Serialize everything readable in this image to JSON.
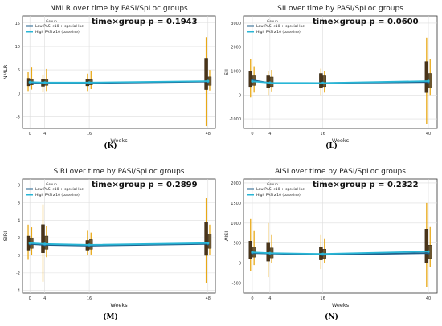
{
  "weeks_label": "Weeks",
  "panels": [
    {
      "letter": "(K)"
    },
    {
      "letter": "(L)"
    },
    {
      "letter": "(M)"
    },
    {
      "letter": "(N)"
    }
  ],
  "chart_data": [
    {
      "type": "line",
      "title": "NMLR over time by PASI/SpLoc groups",
      "annotation": "time×group p = 0.1943",
      "xlabel": "Weeks",
      "ylabel": "NMLR",
      "x": [
        0,
        4,
        16,
        48
      ],
      "xlim": [
        -2,
        50
      ],
      "ylim": [
        -7.5,
        16.5
      ],
      "yticks": [
        -5,
        0,
        5,
        10,
        15
      ],
      "grid": true,
      "legend": {
        "title": "Group",
        "placement": "top-left"
      },
      "series": [
        {
          "name": "Low PASI<10 + special loc",
          "color": "#1f5f8b",
          "values": [
            2.3,
            2.2,
            2.2,
            2.5
          ],
          "box": {
            "q1": [
              1.6,
              1.5,
              1.6,
              0.8
            ],
            "q3": [
              3.2,
              3.0,
              3.0,
              7.5
            ],
            "lo": [
              0.5,
              0.2,
              0.5,
              -7.0
            ],
            "hi": [
              4.5,
              4.0,
              4.2,
              12.0
            ]
          }
        },
        {
          "name": "High PASI≥10 (baseline)",
          "color": "#29b6d6",
          "values": [
            2.4,
            2.3,
            2.3,
            2.6
          ],
          "box": {
            "q1": [
              1.8,
              1.7,
              1.8,
              1.7
            ],
            "q3": [
              3.0,
              3.0,
              2.9,
              3.5
            ],
            "lo": [
              0.8,
              0.5,
              0.9,
              0.6
            ],
            "hi": [
              5.5,
              5.2,
              4.8,
              5.0
            ]
          }
        }
      ]
    },
    {
      "type": "line",
      "title": "SII over time by PASI/SpLoc groups",
      "annotation": "time×group p = 0.0600",
      "xlabel": "Weeks",
      "ylabel": "SII",
      "x": [
        0,
        4,
        16,
        40
      ],
      "xlim": [
        -2,
        42
      ],
      "ylim": [
        -1400,
        3300
      ],
      "yticks": [
        -1000,
        0,
        1000,
        2000,
        3000
      ],
      "grid": true,
      "legend": {
        "title": "Group",
        "placement": "top-left"
      },
      "series": [
        {
          "name": "Low PASI<10 + special loc",
          "color": "#1f5f8b",
          "values": [
            620,
            500,
            500,
            540
          ],
          "box": {
            "q1": [
              350,
              300,
              300,
              100
            ],
            "q3": [
              1000,
              800,
              900,
              1400
            ],
            "lo": [
              -100,
              0,
              0,
              -1200
            ],
            "hi": [
              1500,
              1000,
              1100,
              2400
            ]
          }
        },
        {
          "name": "High PASI≥10 (baseline)",
          "color": "#29b6d6",
          "values": [
            570,
            510,
            500,
            580
          ],
          "box": {
            "q1": [
              400,
              350,
              350,
              300
            ],
            "q3": [
              800,
              750,
              800,
              900
            ],
            "lo": [
              100,
              150,
              100,
              0
            ],
            "hi": [
              1200,
              1050,
              1000,
              1500
            ]
          }
        }
      ]
    },
    {
      "type": "line",
      "title": "SIRI over time by PASI/SpLoc groups",
      "annotation": "time×group p = 0.2899",
      "xlabel": "Weeks",
      "ylabel": "SIRI",
      "x": [
        0,
        4,
        16,
        48
      ],
      "xlim": [
        -2,
        50
      ],
      "ylim": [
        -4.3,
        8.7
      ],
      "yticks": [
        -4,
        -2,
        0,
        2,
        4,
        6,
        8
      ],
      "grid": true,
      "legend": {
        "title": "Group",
        "placement": "top-left"
      },
      "series": [
        {
          "name": "Low PASI<10 + special loc",
          "color": "#1f5f8b",
          "values": [
            1.3,
            1.2,
            1.1,
            1.3
          ],
          "box": {
            "q1": [
              0.6,
              0.3,
              0.6,
              0.0
            ],
            "q3": [
              2.2,
              3.5,
              1.7,
              3.8
            ],
            "lo": [
              -0.5,
              -3.0,
              0.0,
              -3.2
            ],
            "hi": [
              3.5,
              5.8,
              2.8,
              6.5
            ]
          }
        },
        {
          "name": "High PASI≥10 (baseline)",
          "color": "#29b6d6",
          "values": [
            1.4,
            1.3,
            1.2,
            1.4
          ],
          "box": {
            "q1": [
              0.8,
              0.7,
              0.7,
              0.8
            ],
            "q3": [
              2.0,
              2.2,
              1.8,
              2.4
            ],
            "lo": [
              0.0,
              -0.2,
              0.1,
              0.0
            ],
            "hi": [
              3.2,
              3.3,
              2.6,
              3.5
            ]
          }
        }
      ]
    },
    {
      "type": "line",
      "title": "AISI over time by PASI/SpLoc groups",
      "annotation": "time×group p = 0.2322",
      "xlabel": "Weeks",
      "ylabel": "AISI",
      "x": [
        0,
        4,
        16,
        40
      ],
      "xlim": [
        -2,
        42
      ],
      "ylim": [
        -750,
        2100
      ],
      "yticks": [
        -500,
        0,
        500,
        1000,
        1500,
        2000
      ],
      "grid": true,
      "legend": {
        "title": "Group",
        "placement": "top-left"
      },
      "series": [
        {
          "name": "Low PASI<10 + special loc",
          "color": "#1f5f8b",
          "values": [
            250,
            240,
            210,
            250
          ],
          "box": {
            "q1": [
              100,
              50,
              80,
              0
            ],
            "q3": [
              550,
              500,
              400,
              850
            ],
            "lo": [
              -200,
              -350,
              -150,
              -600
            ],
            "hi": [
              1100,
              1000,
              700,
              1500
            ]
          }
        },
        {
          "name": "High PASI≥10 (baseline)",
          "color": "#29b6d6",
          "values": [
            270,
            250,
            230,
            290
          ],
          "box": {
            "q1": [
              150,
              130,
              120,
              120
            ],
            "q3": [
              400,
              380,
              350,
              450
            ],
            "lo": [
              -50,
              0,
              0,
              -100
            ],
            "hi": [
              800,
              700,
              600,
              900
            ]
          }
        }
      ]
    }
  ]
}
